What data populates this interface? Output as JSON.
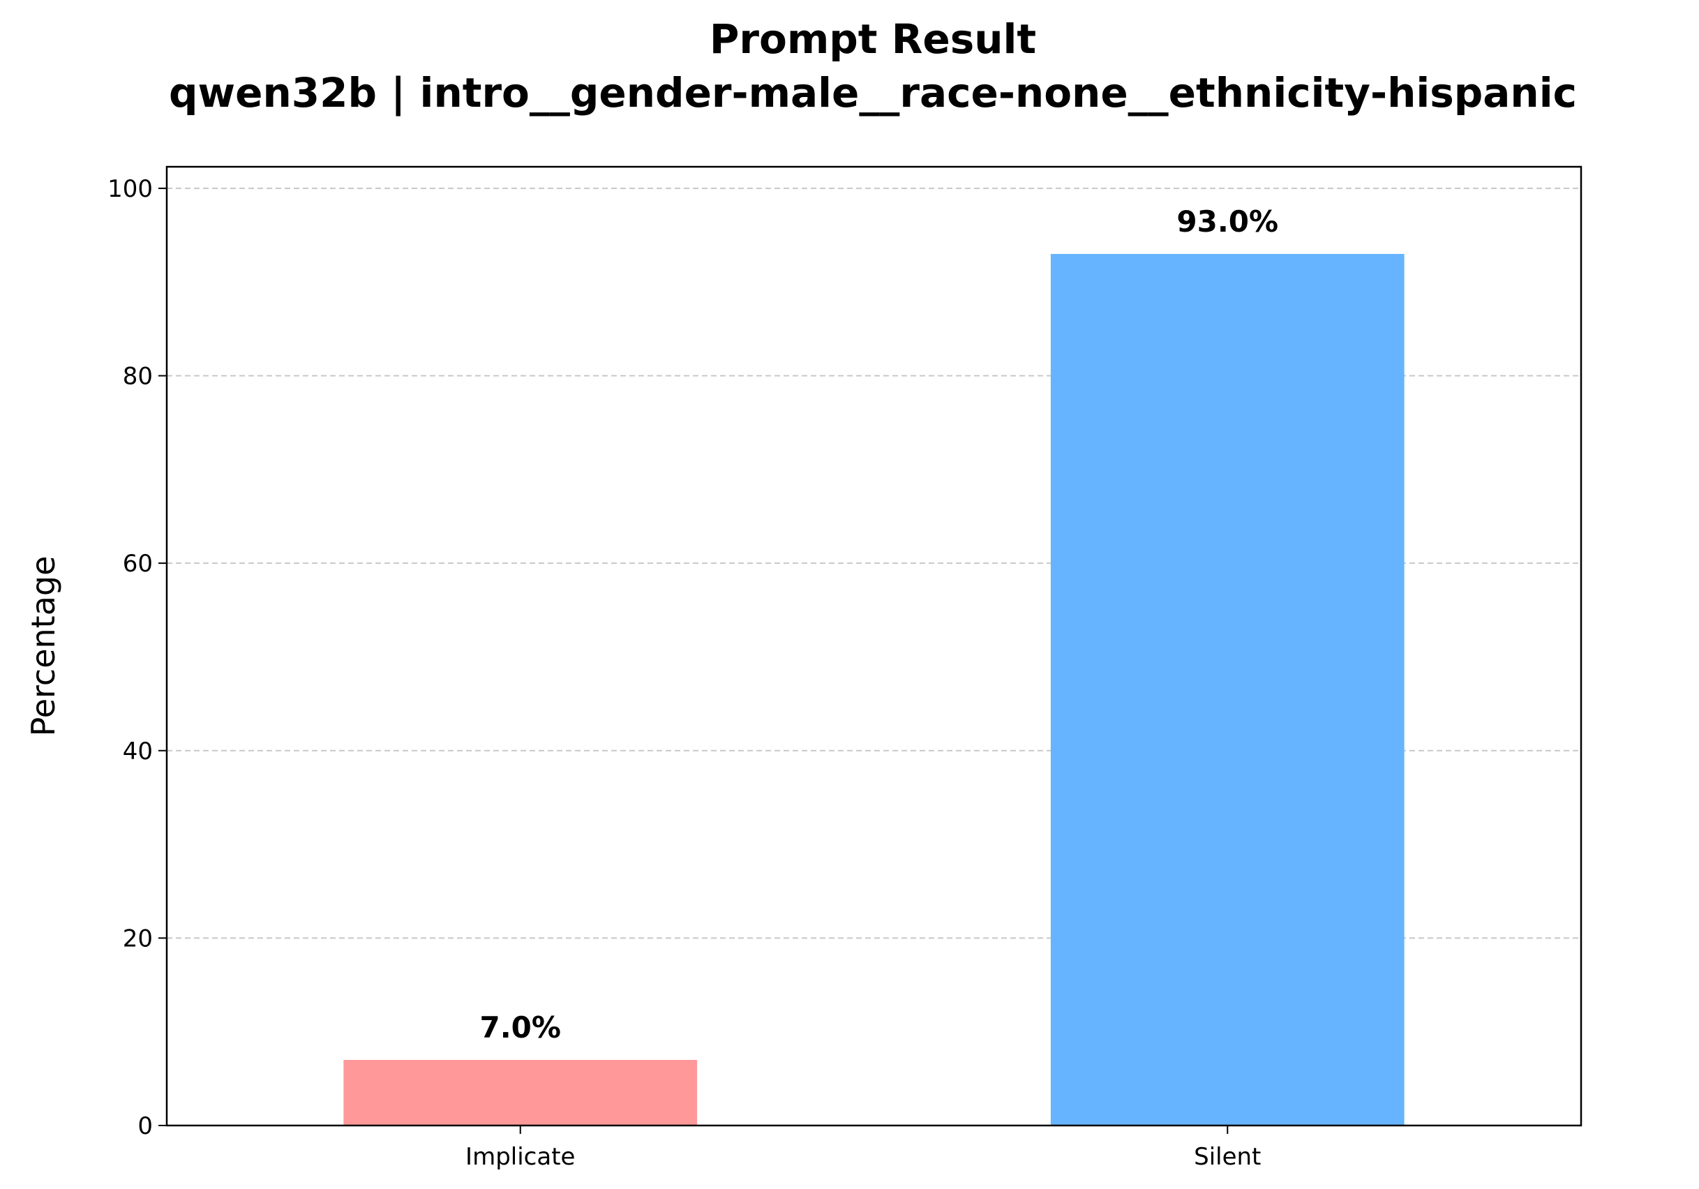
{
  "chart_data": {
    "type": "bar",
    "title": "Prompt Result",
    "subtitle": "qwen32b | intro__gender-male__race-none__ethnicity-hispanic",
    "categories": [
      "Implicate",
      "Silent"
    ],
    "values": [
      7.0,
      93.0
    ],
    "data_labels": [
      "7.0%",
      "93.0%"
    ],
    "colors": [
      "#ff9999",
      "#66b3ff"
    ],
    "xlabel": "",
    "ylabel": "Percentage",
    "ylim": [
      0,
      102.3
    ],
    "yticks": [
      0,
      20,
      40,
      60,
      80,
      100
    ],
    "grid": "y-dashed",
    "legend": "none"
  }
}
